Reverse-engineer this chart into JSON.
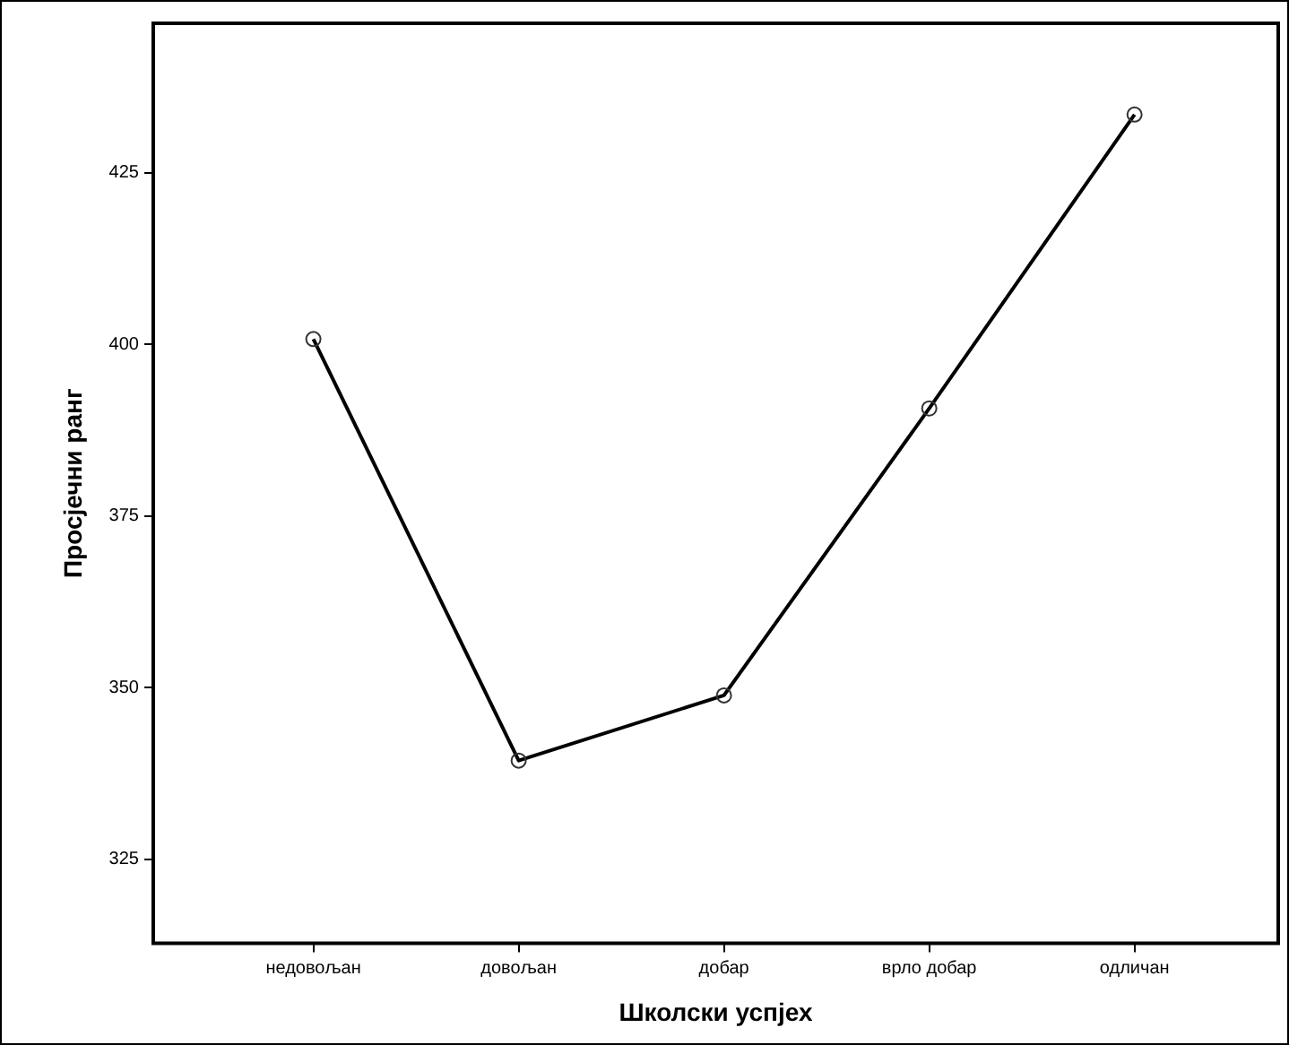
{
  "chart_data": {
    "type": "line",
    "xlabel": "Школски успјех",
    "ylabel": "Просјечни ранг",
    "categories": [
      "недовољан",
      "довољан",
      "добар",
      "врло добар",
      "одличан"
    ],
    "series": [
      {
        "color": "#000000",
        "values": [
          400.8,
          339.4,
          348.9,
          390.7,
          433.5
        ]
      }
    ],
    "ylim": [
      312.8,
      446.8
    ],
    "yticks": [
      325,
      350,
      375,
      400,
      425
    ],
    "marker": "circle",
    "line_style": "solid",
    "legend": false
  }
}
